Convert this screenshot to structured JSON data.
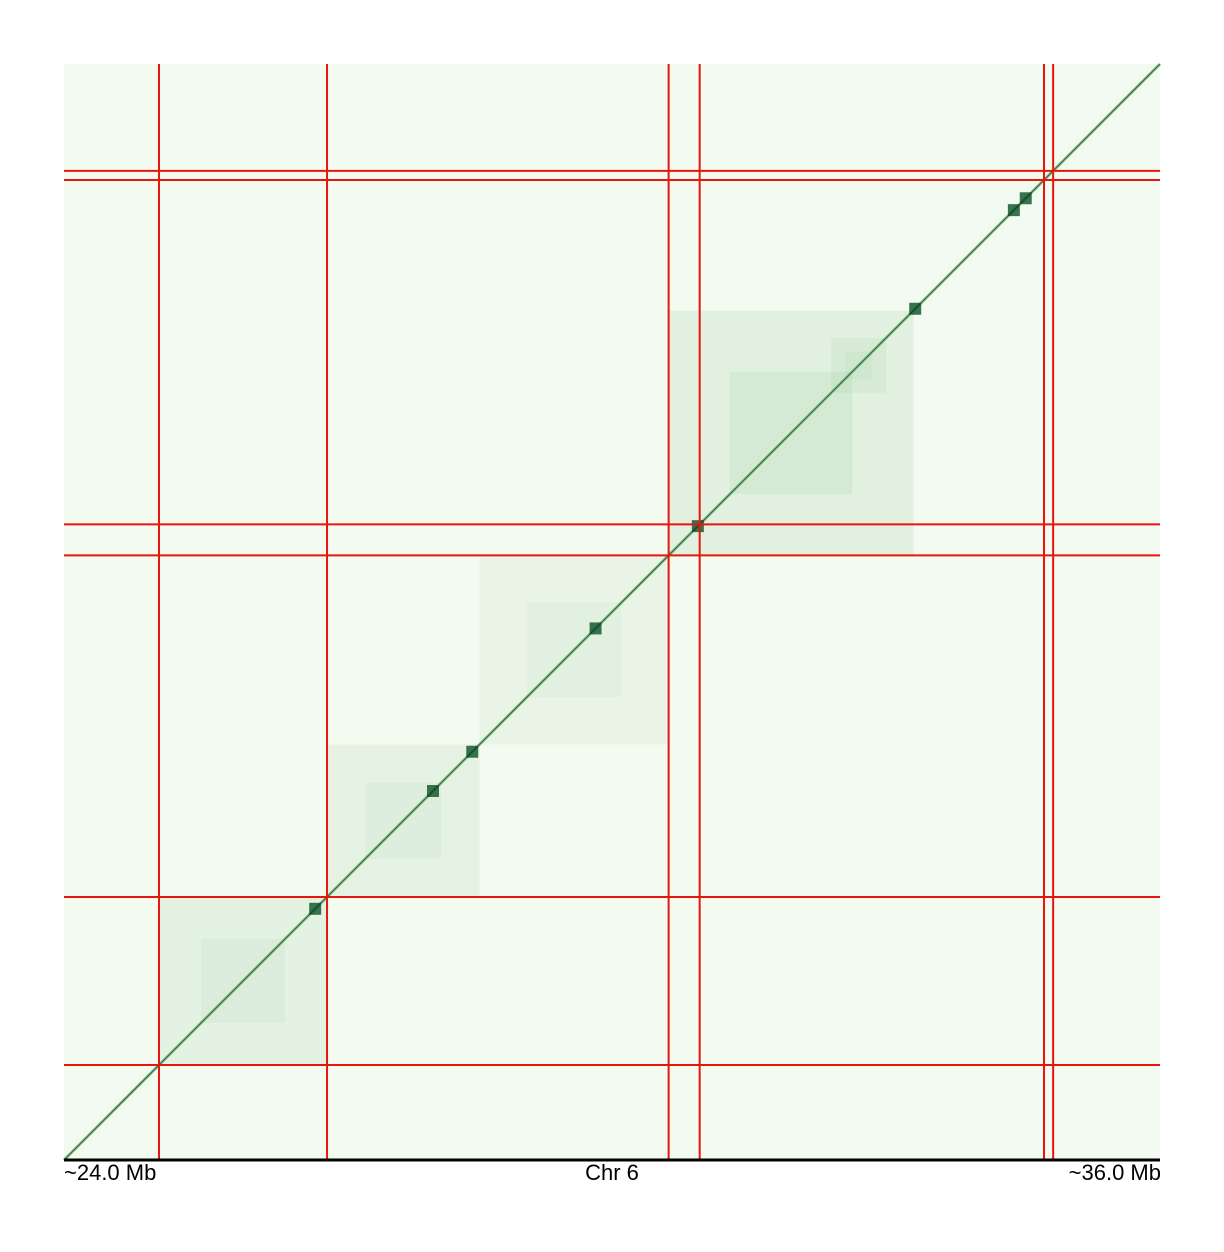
{
  "chart_data": {
    "type": "heatmap",
    "title": "",
    "axis": {
      "start_label": "~24.0 Mb",
      "center_label": "Chr 6",
      "end_label": "~36.0 Mb",
      "start_mb": 24.0,
      "end_mb": 36.0
    },
    "colors": {
      "background": "#f3faf0",
      "low": "#e2f3dc",
      "mid": "#7fbf86",
      "high": "#00441b",
      "boundary_line": "#e8150f",
      "axis_line": "#000000"
    },
    "boundaries_mb": [
      25.04,
      26.88,
      30.62,
      30.96,
      34.73,
      34.83
    ],
    "domains_mb": [
      {
        "start": 25.04,
        "end": 26.88,
        "strength": 0.35
      },
      {
        "start": 26.88,
        "end": 28.55,
        "strength": 0.3
      },
      {
        "start": 28.55,
        "end": 30.62,
        "strength": 0.25
      },
      {
        "start": 30.62,
        "end": 33.3,
        "strength": 0.45
      },
      {
        "start": 32.4,
        "end": 33.0,
        "strength": 0.3
      }
    ],
    "dots_mb": [
      26.75,
      28.47,
      29.82,
      34.4,
      34.53,
      33.32,
      30.94,
      28.04
    ]
  }
}
